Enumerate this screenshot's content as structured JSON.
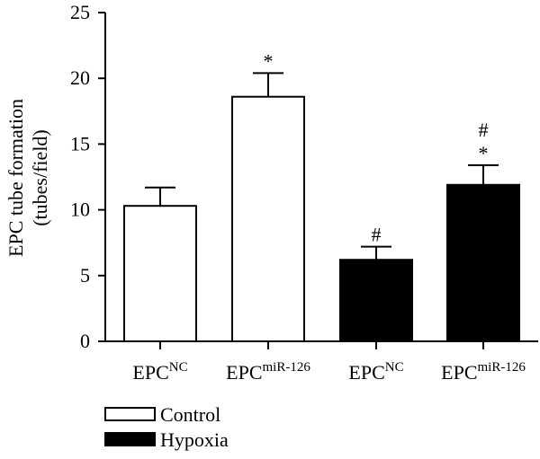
{
  "chart_data": {
    "type": "bar",
    "ylabel_line1": "EPC tube formation",
    "ylabel_line2": "(tubes/field)",
    "ylim": [
      0,
      25
    ],
    "yticks": [
      "0",
      "5",
      "10",
      "15",
      "20",
      "25"
    ],
    "grid": false,
    "legend_position": "bottom-left",
    "bars": [
      {
        "base": "EPC",
        "sup": "NC",
        "value": 10.3,
        "error": 1.4,
        "group": "Control",
        "annotations": []
      },
      {
        "base": "EPC",
        "sup": "miR-126",
        "value": 18.6,
        "error": 1.8,
        "group": "Control",
        "annotations": [
          "*"
        ]
      },
      {
        "base": "EPC",
        "sup": "NC",
        "value": 6.2,
        "error": 1.0,
        "group": "Hypoxia",
        "annotations": [
          "#"
        ]
      },
      {
        "base": "EPC",
        "sup": "miR-126",
        "value": 11.9,
        "error": 1.5,
        "group": "Hypoxia",
        "annotations": [
          "*",
          "#"
        ]
      }
    ],
    "legend": [
      {
        "label": "Control",
        "fill": "#ffffff"
      },
      {
        "label": "Hypoxia",
        "fill": "#000000"
      }
    ]
  }
}
